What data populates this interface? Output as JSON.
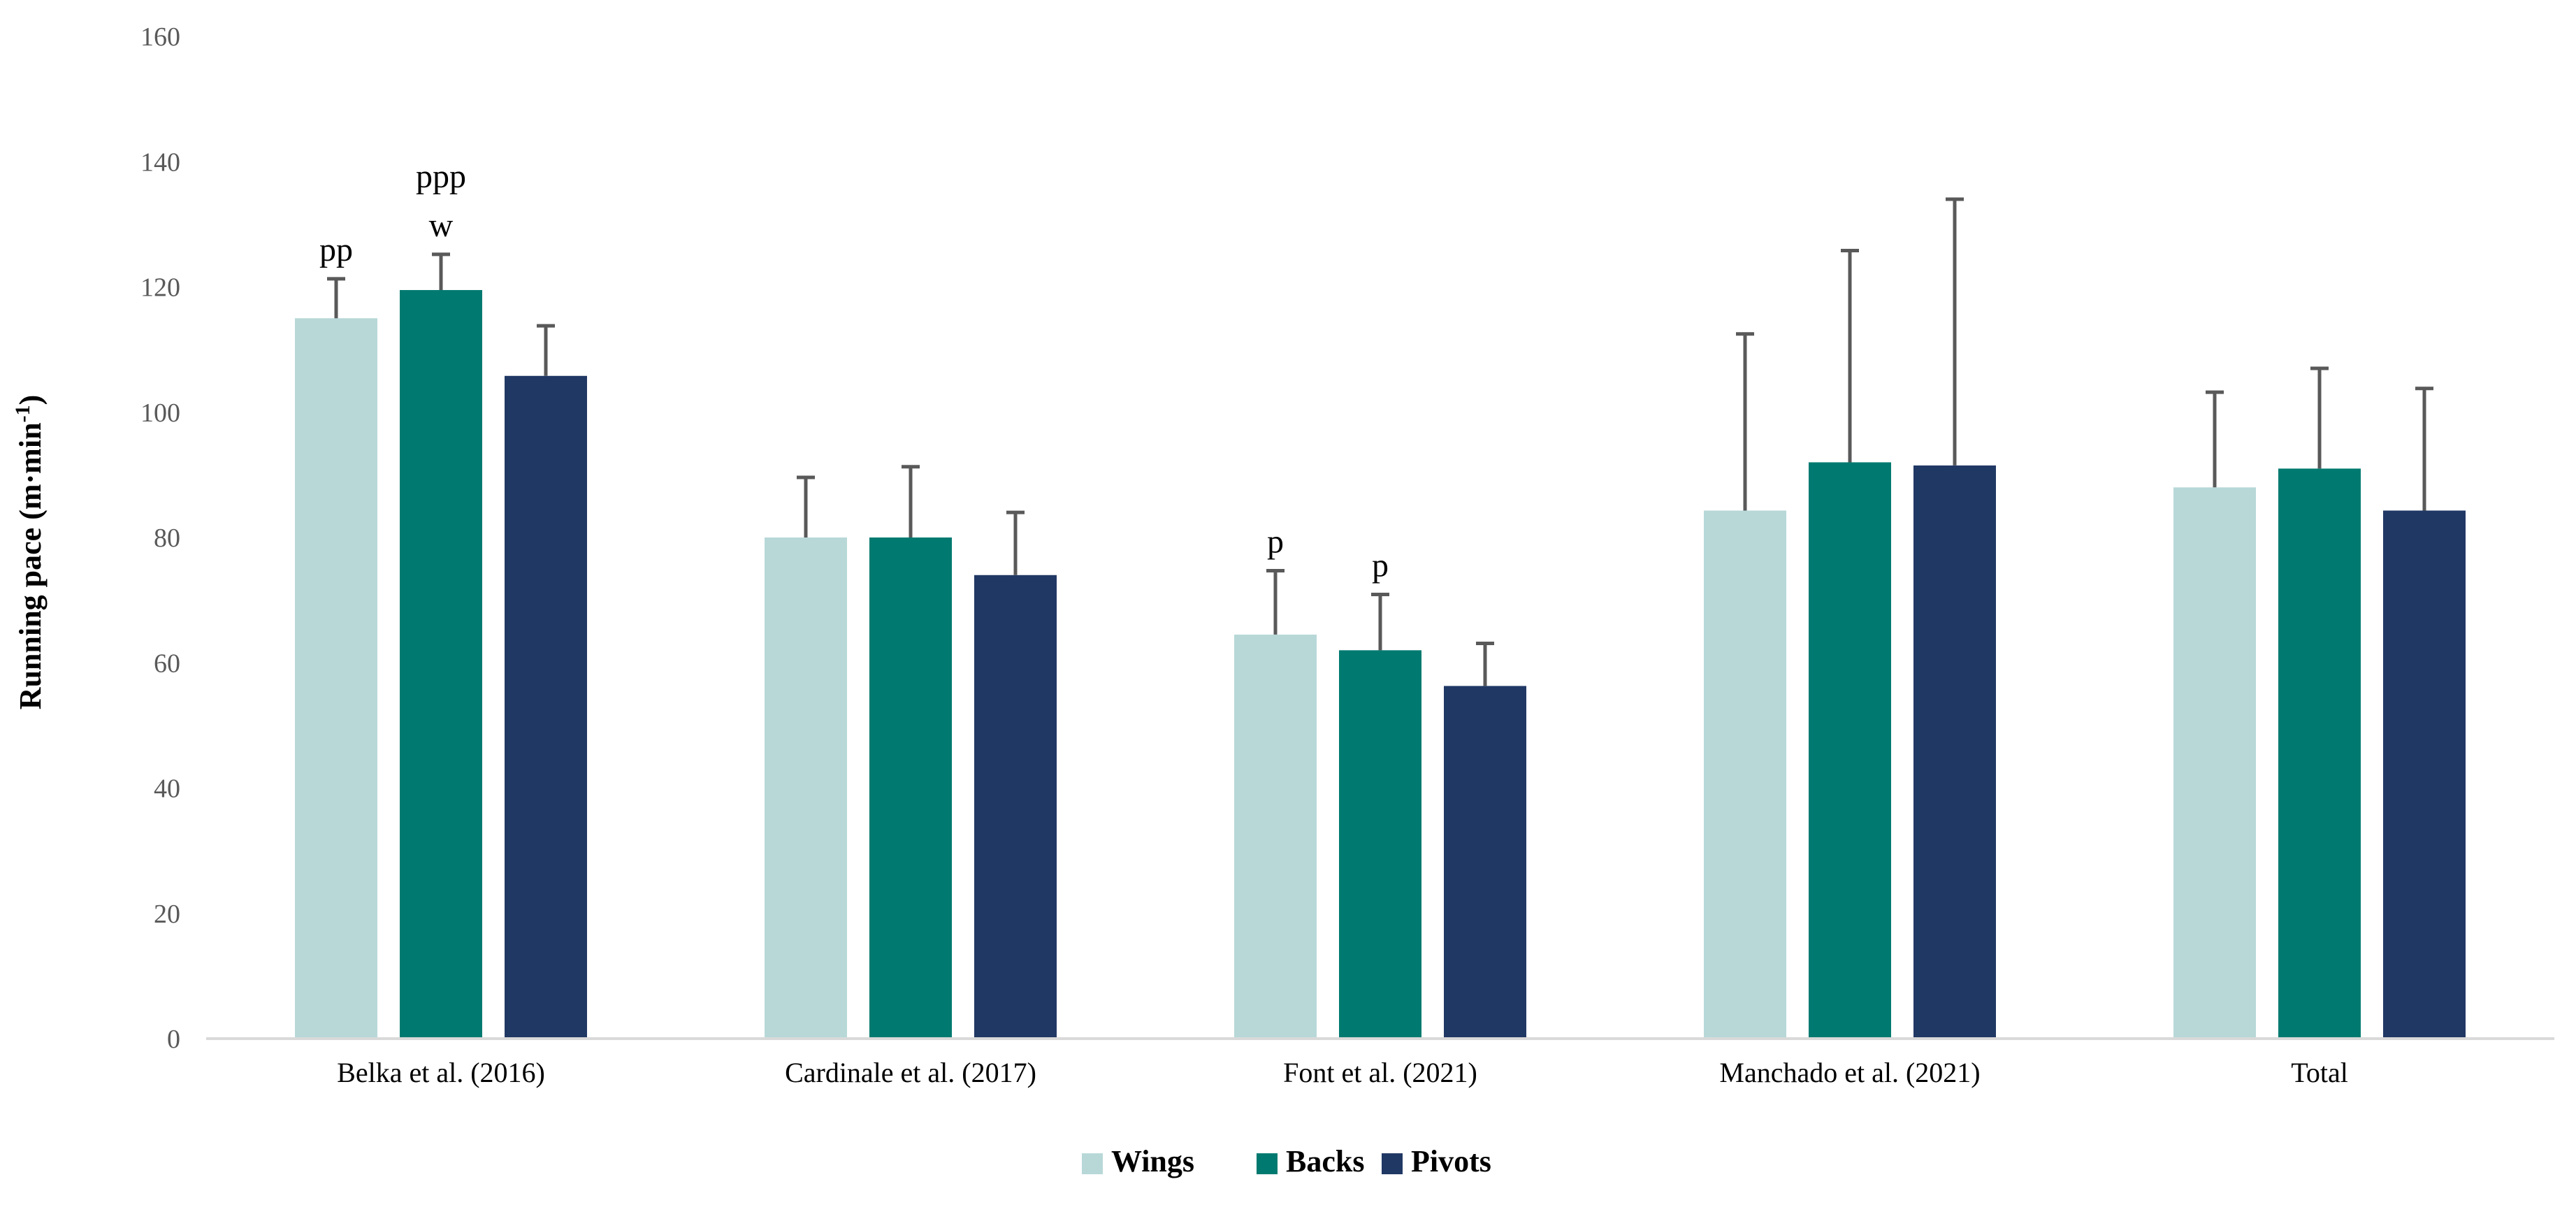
{
  "chart_data": {
    "type": "bar",
    "title": "",
    "xlabel": "",
    "ylabel": "Running pace (m·min",
    "ylabel_superscript": "-1",
    "ylabel_close": ")",
    "ylim": [
      0,
      160
    ],
    "yticks": [
      0,
      20,
      40,
      60,
      80,
      100,
      120,
      140,
      160
    ],
    "grid": false,
    "legend_position": "bottom-center",
    "categories": [
      "Belka et al. (2016)",
      "Cardinale et al. (2017)",
      "Font et al. (2021)",
      "Manchado et al. (2021)",
      "Total"
    ],
    "series": [
      {
        "name": "Wings",
        "color": "#b8d8d8",
        "values": [
          115,
          80,
          64.5,
          84.3,
          88
        ],
        "errors": [
          6.3,
          9.6,
          10.2,
          28.2,
          15.2
        ]
      },
      {
        "name": "Backs",
        "color": "#007a70",
        "values": [
          119.5,
          80,
          62,
          92,
          91
        ],
        "errors": [
          5.7,
          11.3,
          8.9,
          33.8,
          16
        ]
      },
      {
        "name": "Pivots",
        "color": "#203864",
        "values": [
          105.8,
          74,
          56.3,
          91.5,
          84.3
        ],
        "errors": [
          8,
          10,
          6.8,
          42.5,
          19.5
        ]
      }
    ],
    "annotations": [
      {
        "category": 0,
        "series": 0,
        "lines": [
          "pp"
        ]
      },
      {
        "category": 0,
        "series": 1,
        "lines": [
          "ppp",
          "w"
        ]
      },
      {
        "category": 2,
        "series": 0,
        "lines": [
          "p"
        ]
      },
      {
        "category": 2,
        "series": 1,
        "lines": [
          "p"
        ]
      }
    ]
  }
}
